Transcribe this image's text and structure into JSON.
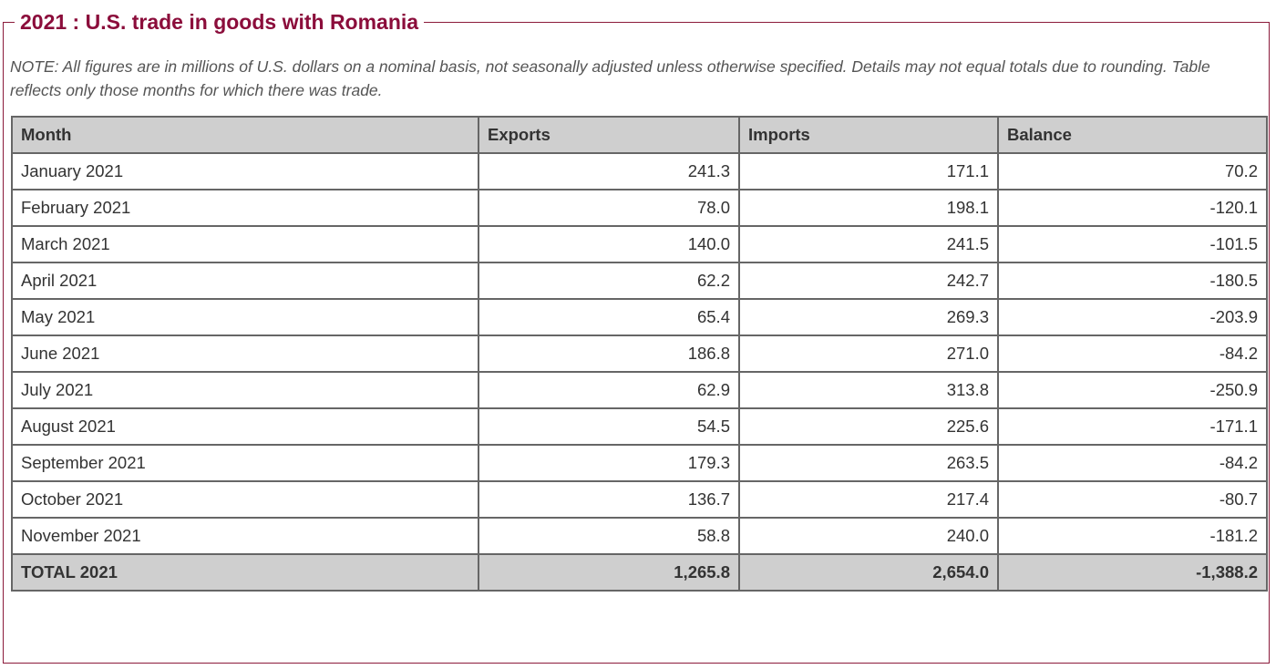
{
  "header": {
    "title": "2021 : U.S. trade in goods with Romania",
    "note": "NOTE: All figures are in millions of U.S. dollars on a nominal basis, not seasonally adjusted unless otherwise specified. Details may not equal totals due to rounding. Table reflects only those months for which there was trade."
  },
  "table": {
    "columns": [
      "Month",
      "Exports",
      "Imports",
      "Balance"
    ],
    "rows": [
      [
        "January 2021",
        "241.3",
        "171.1",
        "70.2"
      ],
      [
        "February 2021",
        "78.0",
        "198.1",
        "-120.1"
      ],
      [
        "March 2021",
        "140.0",
        "241.5",
        "-101.5"
      ],
      [
        "April 2021",
        "62.2",
        "242.7",
        "-180.5"
      ],
      [
        "May 2021",
        "65.4",
        "269.3",
        "-203.9"
      ],
      [
        "June 2021",
        "186.8",
        "271.0",
        "-84.2"
      ],
      [
        "July 2021",
        "62.9",
        "313.8",
        "-250.9"
      ],
      [
        "August 2021",
        "54.5",
        "225.6",
        "-171.1"
      ],
      [
        "September 2021",
        "179.3",
        "263.5",
        "-84.2"
      ],
      [
        "October 2021",
        "136.7",
        "217.4",
        "-80.7"
      ],
      [
        "November 2021",
        "58.8",
        "240.0",
        "-181.2"
      ]
    ],
    "total": [
      "TOTAL 2021",
      "1,265.8",
      "2,654.0",
      "-1,388.2"
    ]
  }
}
